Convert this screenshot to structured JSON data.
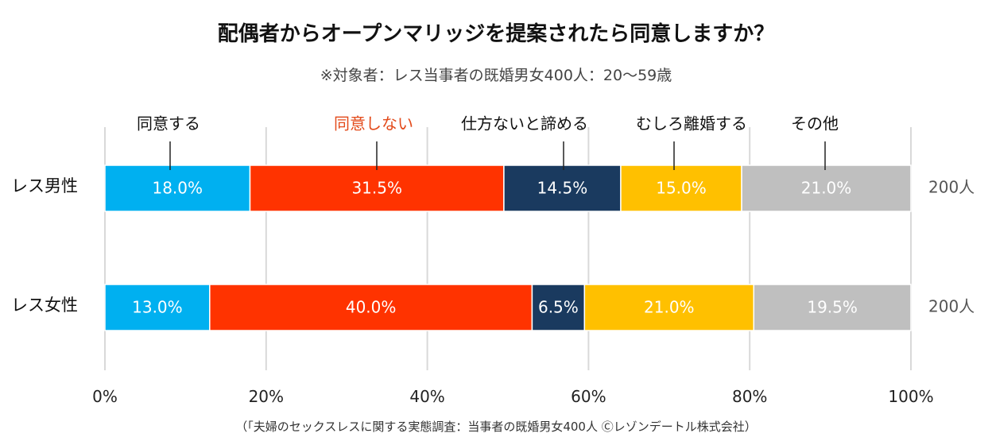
{
  "title": "配偶者からオープンマリッジを提案されたら同意しますか？",
  "subtitle": "※対象者：レス当事者の既婚男女400人：20〜59歳",
  "source": "（「夫婦のセックスレスに関する実態調査：当事者の既婚男女400人 Ⓒレゾンデートル株式会社）",
  "colors": {
    "agree": "#00b0f0",
    "disagree": "#ff3300",
    "resign": "#1a3a5f",
    "divorce": "#ffc000",
    "other": "#bfbfbf",
    "highlight_label": "#e34a1a",
    "grid": "#d9d9d9"
  },
  "chart_data": {
    "type": "bar",
    "orientation": "horizontal",
    "stacked": true,
    "xlim": [
      0,
      100
    ],
    "x_ticks": [
      "0%",
      "20%",
      "40%",
      "60%",
      "80%",
      "100%"
    ],
    "grid": true,
    "categories": [
      "レス男性",
      "レス女性"
    ],
    "counts": [
      "200人",
      "200人"
    ],
    "series": [
      {
        "name": "同意する",
        "values": [
          18.0,
          13.0
        ],
        "labels": [
          "18.0%",
          "13.0%"
        ]
      },
      {
        "name": "同意しない",
        "values": [
          31.5,
          40.0
        ],
        "labels": [
          "31.5%",
          "40.0%"
        ]
      },
      {
        "name": "仕方ないと諦める",
        "values": [
          14.5,
          6.5
        ],
        "labels": [
          "14.5%",
          "6.5%"
        ]
      },
      {
        "name": "むしろ離婚する",
        "values": [
          15.0,
          21.0
        ],
        "labels": [
          "15.0%",
          "21.0%"
        ]
      },
      {
        "name": "その他",
        "values": [
          21.0,
          19.5
        ],
        "labels": [
          "21.0%",
          "19.5%"
        ]
      }
    ]
  }
}
